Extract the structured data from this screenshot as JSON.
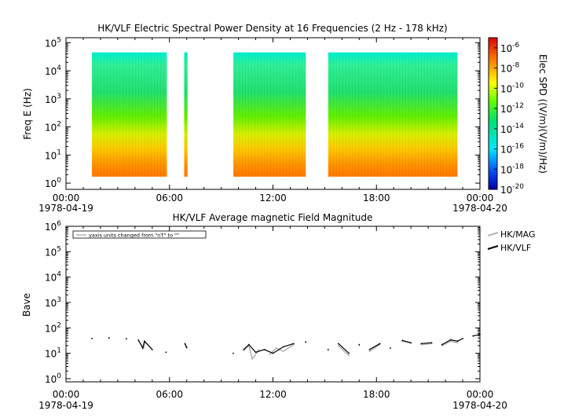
{
  "chart_data": [
    {
      "type": "heatmap",
      "title": "HK/VLF  Electric Spectral Power Density at 16 Frequencies (2 Hz - 178 kHz)",
      "ylabel": "Freq E (Hz)",
      "yscale": "log",
      "ylim": [
        0.6,
        150000
      ],
      "y_ticks": [
        {
          "value": 1,
          "base": "10",
          "exp": "0"
        },
        {
          "value": 10,
          "base": "10",
          "exp": "1"
        },
        {
          "value": 100,
          "base": "10",
          "exp": "2"
        },
        {
          "value": 1000,
          "base": "10",
          "exp": "3"
        },
        {
          "value": 10000,
          "base": "10",
          "exp": "4"
        },
        {
          "value": 100000,
          "base": "10",
          "exp": "5"
        }
      ],
      "x_ticks": [
        {
          "hour": 0,
          "label": "00:00",
          "date": "1978-04-19"
        },
        {
          "hour": 6,
          "label": "06:00",
          "date": ""
        },
        {
          "hour": 12,
          "label": "12:00",
          "date": ""
        },
        {
          "hour": 18,
          "label": "18:00",
          "date": ""
        },
        {
          "hour": 24,
          "label": "00:00",
          "date": "1978-04-20"
        }
      ],
      "xlim_hours": [
        0,
        24
      ],
      "data_frequency_range_hz": [
        1.7,
        45000
      ],
      "data_intervals_hours": [
        [
          1.5,
          5.85
        ],
        [
          6.85,
          7.05
        ],
        [
          9.7,
          13.9
        ],
        [
          15.2,
          22.7
        ]
      ],
      "colorbar": {
        "label": "Elec SPD ((V/m)(V/m)/Hz)",
        "scale": "log",
        "range_exp": [
          -20,
          -5
        ],
        "ticks": [
          {
            "base": "10",
            "exp": "-6",
            "exp_value": -6
          },
          {
            "base": "10",
            "exp": "-8",
            "exp_value": -8
          },
          {
            "base": "10",
            "exp": "-10",
            "exp_value": -10
          },
          {
            "base": "10",
            "exp": "-12",
            "exp_value": -12
          },
          {
            "base": "10",
            "exp": "-14",
            "exp_value": -14
          },
          {
            "base": "10",
            "exp": "-16",
            "exp_value": -16
          },
          {
            "base": "10",
            "exp": "-18",
            "exp_value": -18
          },
          {
            "base": "10",
            "exp": "-20",
            "exp_value": -20
          }
        ]
      }
    },
    {
      "type": "line",
      "title": "HK/VLF  Average magnetic Field Magnitude",
      "ylabel": "Bave",
      "yscale": "log",
      "ylim": [
        0.75,
        1000000
      ],
      "y_ticks": [
        {
          "value": 1,
          "base": "10",
          "exp": "0"
        },
        {
          "value": 10,
          "base": "10",
          "exp": "1"
        },
        {
          "value": 100,
          "base": "10",
          "exp": "2"
        },
        {
          "value": 1000,
          "base": "10",
          "exp": "3"
        },
        {
          "value": 10000,
          "base": "10",
          "exp": "4"
        },
        {
          "value": 100000,
          "base": "10",
          "exp": "5"
        },
        {
          "value": 1000000,
          "base": "10",
          "exp": "6"
        }
      ],
      "x_ticks": [
        {
          "hour": 0,
          "label": "00:00",
          "date": "1978-04-19"
        },
        {
          "hour": 6,
          "label": "06:00",
          "date": ""
        },
        {
          "hour": 12,
          "label": "12:00",
          "date": ""
        },
        {
          "hour": 18,
          "label": "18:00",
          "date": ""
        },
        {
          "hour": 24,
          "label": "00:00",
          "date": "1978-04-20"
        }
      ],
      "xlim_hours": [
        0,
        24
      ],
      "annotation": "yaxis units changed from \"nT\" to \"\"",
      "legend_position": "right",
      "series": [
        {
          "name": "HK/MAG",
          "color": "#b4b4b4",
          "points": [
            [
              1.5,
              38
            ],
            [
              2.5,
              40
            ],
            [
              3.5,
              38
            ],
            [
              4.2,
              32
            ],
            [
              4.5,
              16
            ],
            [
              4.6,
              28
            ],
            [
              5.0,
              14
            ],
            [
              5.8,
              11
            ],
            [
              6.9,
              22
            ],
            [
              7.0,
              16
            ],
            [
              9.7,
              10
            ],
            [
              10.3,
              13
            ],
            [
              10.6,
              20
            ],
            [
              10.8,
              6
            ],
            [
              11.2,
              14
            ],
            [
              11.8,
              9
            ],
            [
              12.2,
              16
            ],
            [
              12.6,
              12
            ],
            [
              13.2,
              22
            ],
            [
              13.9,
              26
            ],
            [
              15.2,
              13
            ],
            [
              15.8,
              20
            ],
            [
              16.4,
              8
            ],
            [
              17.0,
              20
            ],
            [
              17.6,
              12
            ],
            [
              18.2,
              22
            ],
            [
              18.8,
              15
            ],
            [
              19.5,
              30
            ],
            [
              20.0,
              25
            ],
            [
              20.6,
              22
            ],
            [
              21.2,
              24
            ],
            [
              21.8,
              20
            ],
            [
              22.3,
              30
            ],
            [
              22.7,
              26
            ]
          ]
        },
        {
          "name": "HK/VLF",
          "color": "#000000",
          "points": [
            [
              1.5,
              38
            ],
            [
              2.5,
              40
            ],
            [
              3.5,
              37
            ],
            [
              4.2,
              33
            ],
            [
              4.45,
              16
            ],
            [
              4.55,
              30
            ],
            [
              5.0,
              14
            ],
            [
              5.8,
              11
            ],
            [
              6.9,
              24
            ],
            [
              7.0,
              17
            ],
            [
              9.7,
              10
            ],
            [
              10.3,
              14
            ],
            [
              10.6,
              22
            ],
            [
              11.0,
              11
            ],
            [
              11.5,
              14
            ],
            [
              12.0,
              10
            ],
            [
              12.6,
              18
            ],
            [
              13.2,
              24
            ],
            [
              13.9,
              28
            ],
            [
              15.2,
              14
            ],
            [
              15.8,
              24
            ],
            [
              16.4,
              10
            ],
            [
              17.0,
              22
            ],
            [
              17.6,
              14
            ],
            [
              18.2,
              24
            ],
            [
              18.8,
              16
            ],
            [
              19.5,
              32
            ],
            [
              20.0,
              26
            ],
            [
              20.6,
              24
            ],
            [
              21.2,
              26
            ],
            [
              21.8,
              22
            ],
            [
              22.3,
              34
            ],
            [
              22.7,
              30
            ],
            [
              23.0,
              38
            ],
            [
              23.6,
              48
            ],
            [
              24.0,
              55
            ]
          ]
        }
      ]
    }
  ]
}
